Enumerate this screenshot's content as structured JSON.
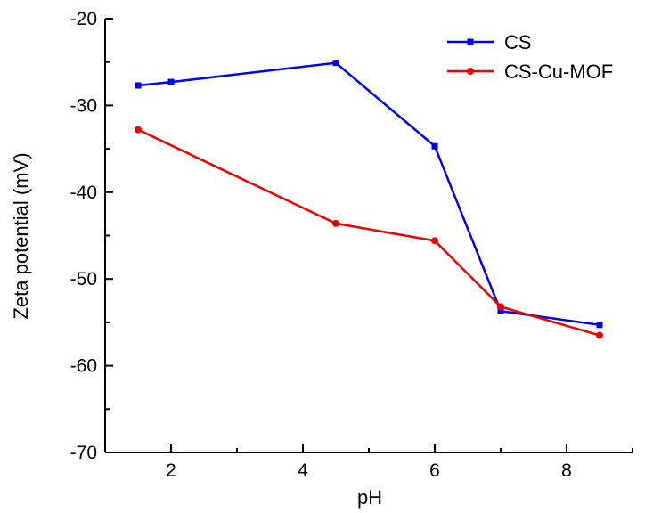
{
  "chart_data": {
    "type": "line",
    "title": "",
    "xlabel": "pH",
    "ylabel": "Zeta potential (mV)",
    "xlim": [
      1,
      9
    ],
    "ylim": [
      -70,
      -20
    ],
    "xticks": [
      2,
      4,
      6,
      8
    ],
    "yticks": [
      -70,
      -60,
      -50,
      -40,
      -30,
      -20
    ],
    "grid": false,
    "legend": "top-right",
    "series": [
      {
        "name": "CS",
        "color": "#0000ee",
        "marker": "square",
        "x": [
          1.5,
          2.0,
          4.5,
          6.0,
          7.0,
          8.5
        ],
        "y": [
          -27.7,
          -27.3,
          -25.1,
          -34.7,
          -53.7,
          -55.3
        ]
      },
      {
        "name": "CS-Cu-MOF",
        "color": "#ee0000",
        "marker": "circle",
        "x": [
          1.5,
          4.5,
          6.0,
          7.0,
          8.5
        ],
        "y": [
          -32.8,
          -43.6,
          -45.6,
          -53.2,
          -56.5
        ]
      }
    ]
  }
}
